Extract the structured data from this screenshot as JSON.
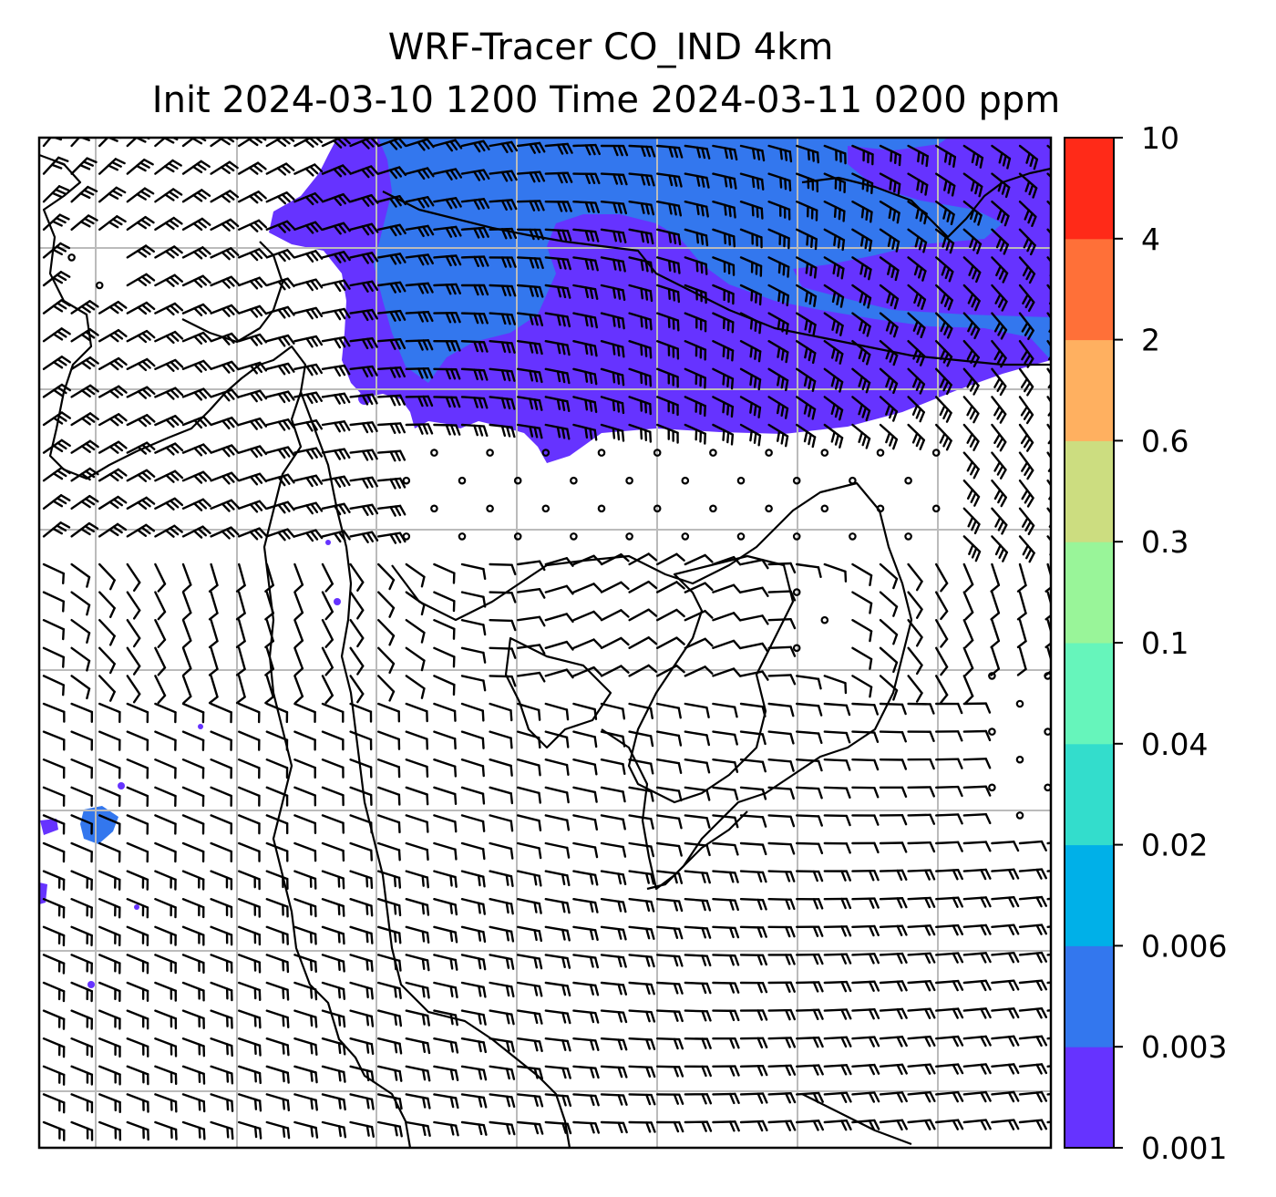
{
  "title": {
    "line1": "WRF-Tracer CO_IND 4km",
    "line2": "Init 2024-03-10 1200 Time 2024-03-11 0200 ppm"
  },
  "colorbar": {
    "ticks": [
      "0.001",
      "0.003",
      "0.006",
      "0.02",
      "0.04",
      "0.1",
      "0.3",
      "0.6",
      "2",
      "4",
      "10"
    ],
    "colors": [
      "#6633ff",
      "#3377ee",
      "#00b0e8",
      "#33ddcc",
      "#66f5bb",
      "#99f599",
      "#ccdd80",
      "#ffb060",
      "#ff7038",
      "#ff2a18"
    ]
  },
  "map": {
    "plume_colors": {
      "low": "#6633ff",
      "mid": "#3377ee"
    },
    "gridline_color": "#bbbbbb",
    "coastline_color": "#000000",
    "barb_color": "#000000"
  }
}
